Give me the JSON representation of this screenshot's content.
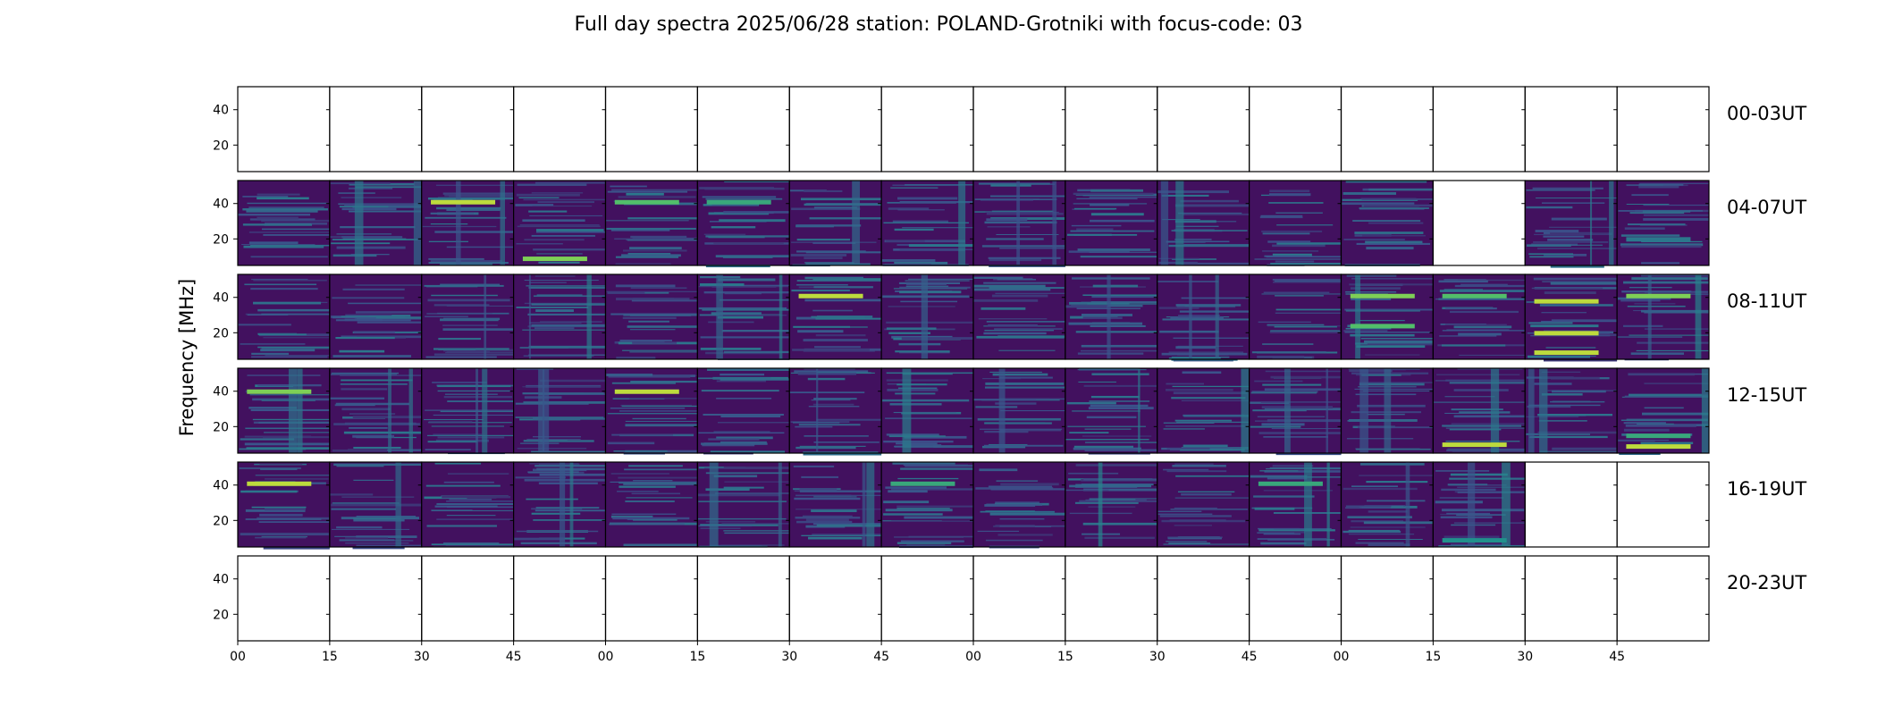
{
  "chart_data": {
    "type": "heatmap",
    "title": "Full day spectra 2025/06/28 station: POLAND-Grotniki with focus-code: 03",
    "ylabel": "Frequency [MHz]",
    "xlabel": "",
    "ylim": [
      5,
      53
    ],
    "y_ticks": [
      "20",
      "40"
    ],
    "x_ticks": [
      "00",
      "15",
      "30",
      "45",
      "00",
      "15",
      "30",
      "45",
      "00",
      "15",
      "30",
      "45",
      "00",
      "15",
      "30",
      "45"
    ],
    "grid": false,
    "colormap": "viridis",
    "panels_per_row": 16,
    "panel_minutes": 15,
    "rows": [
      {
        "label": "00-03UT",
        "status": [
          "e",
          "e",
          "e",
          "e",
          "e",
          "e",
          "e",
          "e",
          "e",
          "e",
          "e",
          "e",
          "e",
          "e",
          "e",
          "e"
        ]
      },
      {
        "label": "04-07UT",
        "status": [
          "d",
          "d",
          "d",
          "d",
          "d",
          "d",
          "d",
          "d",
          "d",
          "d",
          "d",
          "d",
          "d",
          "e",
          "d",
          "d"
        ]
      },
      {
        "label": "08-11UT",
        "status": [
          "d",
          "d",
          "d",
          "d",
          "d",
          "d",
          "d",
          "d",
          "d",
          "d",
          "d",
          "d",
          "d",
          "d",
          "d",
          "d"
        ]
      },
      {
        "label": "12-15UT",
        "status": [
          "d",
          "d",
          "d",
          "d",
          "d",
          "d",
          "d",
          "d",
          "d",
          "d",
          "d",
          "d",
          "d",
          "d",
          "d",
          "d"
        ]
      },
      {
        "label": "16-19UT",
        "status": [
          "d",
          "d",
          "d",
          "d",
          "d",
          "d",
          "d",
          "d",
          "d",
          "d",
          "d",
          "d",
          "d",
          "d",
          "e",
          "e"
        ]
      },
      {
        "label": "20-23UT",
        "status": [
          "e",
          "e",
          "e",
          "e",
          "e",
          "e",
          "e",
          "e",
          "e",
          "e",
          "e",
          "e",
          "e",
          "e",
          "e",
          "e"
        ]
      }
    ],
    "bright_bands_mhz": [
      {
        "row": 1,
        "panel": 2,
        "freq": 41,
        "strength": 0.9
      },
      {
        "row": 1,
        "panel": 4,
        "freq": 41,
        "strength": 0.7
      },
      {
        "row": 1,
        "panel": 5,
        "freq": 41,
        "strength": 0.6
      },
      {
        "row": 1,
        "panel": 3,
        "freq": 9,
        "strength": 0.8
      },
      {
        "row": 1,
        "panel": 15,
        "freq": 20,
        "strength": 0.4
      },
      {
        "row": 2,
        "panel": 6,
        "freq": 41,
        "strength": 0.9
      },
      {
        "row": 2,
        "panel": 12,
        "freq": 41,
        "strength": 0.8
      },
      {
        "row": 2,
        "panel": 12,
        "freq": 24,
        "strength": 0.7
      },
      {
        "row": 2,
        "panel": 13,
        "freq": 41,
        "strength": 0.7
      },
      {
        "row": 2,
        "panel": 14,
        "freq": 38,
        "strength": 0.9
      },
      {
        "row": 2,
        "panel": 14,
        "freq": 20,
        "strength": 0.9
      },
      {
        "row": 2,
        "panel": 14,
        "freq": 9,
        "strength": 0.9
      },
      {
        "row": 2,
        "panel": 15,
        "freq": 41,
        "strength": 0.8
      },
      {
        "row": 3,
        "panel": 0,
        "freq": 40,
        "strength": 0.8
      },
      {
        "row": 3,
        "panel": 4,
        "freq": 40,
        "strength": 0.9
      },
      {
        "row": 3,
        "panel": 13,
        "freq": 10,
        "strength": 0.9
      },
      {
        "row": 3,
        "panel": 15,
        "freq": 9,
        "strength": 0.9
      },
      {
        "row": 3,
        "panel": 15,
        "freq": 15,
        "strength": 0.6
      },
      {
        "row": 4,
        "panel": 0,
        "freq": 41,
        "strength": 0.9
      },
      {
        "row": 4,
        "panel": 7,
        "freq": 41,
        "strength": 0.6
      },
      {
        "row": 4,
        "panel": 11,
        "freq": 41,
        "strength": 0.6
      },
      {
        "row": 4,
        "panel": 13,
        "freq": 9,
        "strength": 0.5
      }
    ],
    "row_labels_position": "right"
  }
}
